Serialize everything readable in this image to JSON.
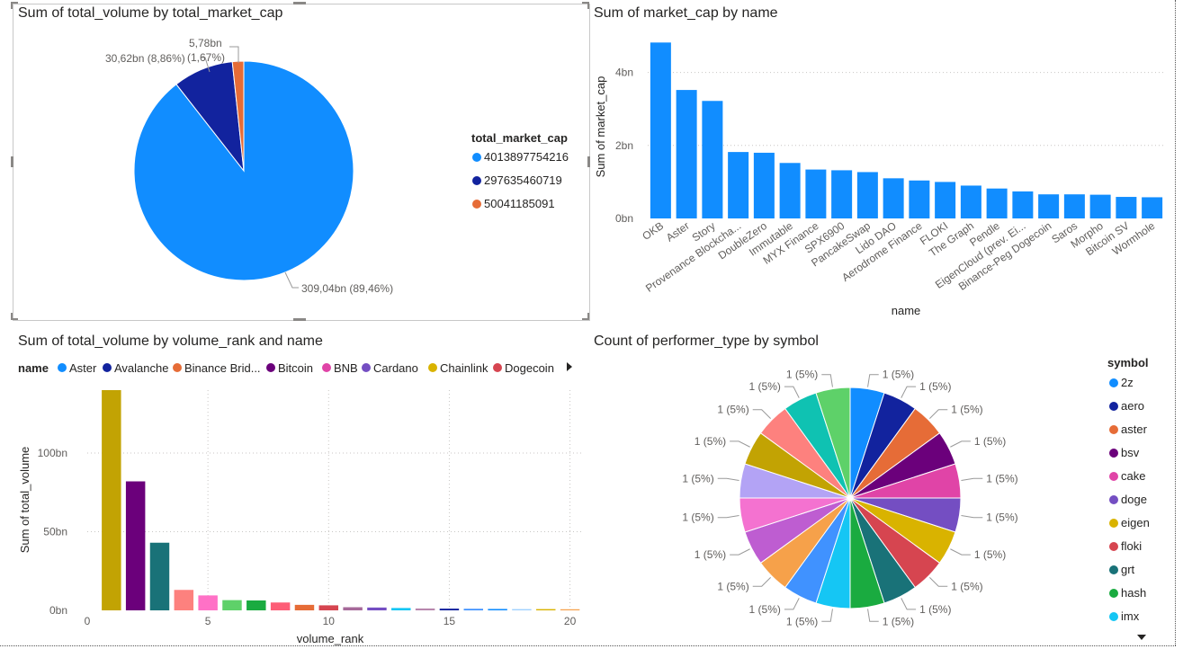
{
  "charts": [
    {
      "type": "pie",
      "title": "Sum of total_volume by total_market_cap",
      "legend_title": "total_market_cap",
      "legend_position": "right",
      "slices": [
        {
          "label": "4013897754216",
          "value": 309.04,
          "data_label": "309,04bn (89,46%)",
          "color": "#118DFF"
        },
        {
          "label": "297635460719",
          "value": 30.62,
          "data_label": "30,62bn (8,86%)",
          "color": "#12239E"
        },
        {
          "label": "50041185091",
          "value": 5.78,
          "data_label_value": "5,78bn",
          "data_label_pct": "(1,67%)",
          "color": "#E66C37"
        }
      ]
    },
    {
      "type": "bar",
      "title": "Sum of market_cap by name",
      "xlabel": "name",
      "ylabel": "Sum of market_cap",
      "ylim": [
        0,
        5
      ],
      "yticks": [
        {
          "value": 0,
          "label": "0bn"
        },
        {
          "value": 2,
          "label": "2bn"
        },
        {
          "value": 4,
          "label": "4bn"
        }
      ],
      "grid": true,
      "color": "#118DFF",
      "categories": [
        "OKB",
        "Aster",
        "Story",
        "Provenance Blockcha...",
        "DoubleZero",
        "Immutable",
        "MYX Finance",
        "SPX6900",
        "PancakeSwap",
        "Lido DAO",
        "Aerodrome Finance",
        "FLOKI",
        "The Graph",
        "Pendle",
        "EigenCloud (prev. Ei...",
        "Binance-Peg Dogecoin",
        "Saros",
        "Morpho",
        "Bitcoin SV",
        "Wormhole"
      ],
      "values": [
        4.82,
        3.52,
        3.22,
        1.82,
        1.8,
        1.52,
        1.34,
        1.32,
        1.27,
        1.1,
        1.04,
        1.0,
        0.9,
        0.82,
        0.74,
        0.66,
        0.66,
        0.65,
        0.59,
        0.58
      ]
    },
    {
      "type": "bar",
      "title": "Sum of total_volume by volume_rank and name",
      "xlabel": "volume_rank",
      "ylabel": "Sum of total_volume",
      "xlim": [
        0,
        20.5
      ],
      "ylim": [
        0,
        140
      ],
      "xticks": [
        0,
        5,
        10,
        15,
        20
      ],
      "yticks": [
        {
          "value": 0,
          "label": "0bn"
        },
        {
          "value": 50,
          "label": "50bn"
        },
        {
          "value": 100,
          "label": "100bn"
        }
      ],
      "grid": true,
      "legend_title": "name",
      "legend_position": "top",
      "legend": [
        {
          "name": "Aster",
          "color": "#118DFF"
        },
        {
          "name": "Avalanche",
          "color": "#12239E"
        },
        {
          "name": "Binance Brid...",
          "color": "#E66C37"
        },
        {
          "name": "Bitcoin",
          "color": "#6B007B"
        },
        {
          "name": "BNB",
          "color": "#E044A7"
        },
        {
          "name": "Cardano",
          "color": "#744EC2"
        },
        {
          "name": "Chainlink",
          "color": "#D9B300"
        },
        {
          "name": "Dogecoin",
          "color": "#D64550"
        }
      ],
      "bars": [
        {
          "x": 1,
          "value": 140,
          "color": "#C2A303"
        },
        {
          "x": 2,
          "value": 82,
          "color": "#6B007B"
        },
        {
          "x": 3,
          "value": 43,
          "color": "#197278"
        },
        {
          "x": 4,
          "value": 13,
          "color": "#FD817E"
        },
        {
          "x": 5,
          "value": 9.5,
          "color": "#FF71C6"
        },
        {
          "x": 6,
          "value": 6.5,
          "color": "#5ED169"
        },
        {
          "x": 7,
          "value": 6.3,
          "color": "#1AAB40"
        },
        {
          "x": 8,
          "value": 5,
          "color": "#FD5E77"
        },
        {
          "x": 9,
          "value": 3.5,
          "color": "#E66C37"
        },
        {
          "x": 10,
          "value": 3.2,
          "color": "#D64550"
        },
        {
          "x": 11,
          "value": 2,
          "color": "#A66999"
        },
        {
          "x": 12,
          "value": 1.8,
          "color": "#744EC2"
        },
        {
          "x": 13,
          "value": 1.5,
          "color": "#15C6F4"
        },
        {
          "x": 14,
          "value": 1.2,
          "color": "#B887AD"
        },
        {
          "x": 15,
          "value": 1.1,
          "color": "#12239E"
        },
        {
          "x": 16,
          "value": 1.0,
          "color": "#4092FF"
        },
        {
          "x": 17,
          "value": 0.9,
          "color": "#118DFF"
        },
        {
          "x": 18,
          "value": 0.8,
          "color": "#A0D1FF"
        },
        {
          "x": 19,
          "value": 0.8,
          "color": "#D9B300"
        },
        {
          "x": 20,
          "value": 0.7,
          "color": "#F6A14A"
        }
      ]
    },
    {
      "type": "pie",
      "title": "Count of performer_type by symbol",
      "legend_title": "symbol",
      "legend_position": "right",
      "legend": [
        {
          "name": "2z",
          "color": "#118DFF"
        },
        {
          "name": "aero",
          "color": "#12239E"
        },
        {
          "name": "aster",
          "color": "#E66C37"
        },
        {
          "name": "bsv",
          "color": "#6B007B"
        },
        {
          "name": "cake",
          "color": "#E044A7"
        },
        {
          "name": "doge",
          "color": "#744EC2"
        },
        {
          "name": "eigen",
          "color": "#D9B300"
        },
        {
          "name": "floki",
          "color": "#D64550"
        },
        {
          "name": "grt",
          "color": "#197278"
        },
        {
          "name": "hash",
          "color": "#1AAB40"
        },
        {
          "name": "imx",
          "color": "#15C6F4"
        }
      ],
      "slice_values": [
        1,
        1,
        1,
        1,
        1,
        1,
        1,
        1,
        1,
        1,
        1,
        1,
        1,
        1,
        1,
        1,
        1,
        1,
        1,
        1
      ],
      "slice_colors": [
        "#118DFF",
        "#12239E",
        "#E66C37",
        "#6B007B",
        "#E044A7",
        "#744EC2",
        "#D9B300",
        "#D64550",
        "#197278",
        "#1AAB40",
        "#15C6F4",
        "#4092FF",
        "#F6A14A",
        "#BE5DD1",
        "#F472D0",
        "#B3A3F5",
        "#C2A303",
        "#FD817E",
        "#0FC2B2",
        "#5ED169"
      ],
      "data_label": "1 (5%)"
    }
  ]
}
